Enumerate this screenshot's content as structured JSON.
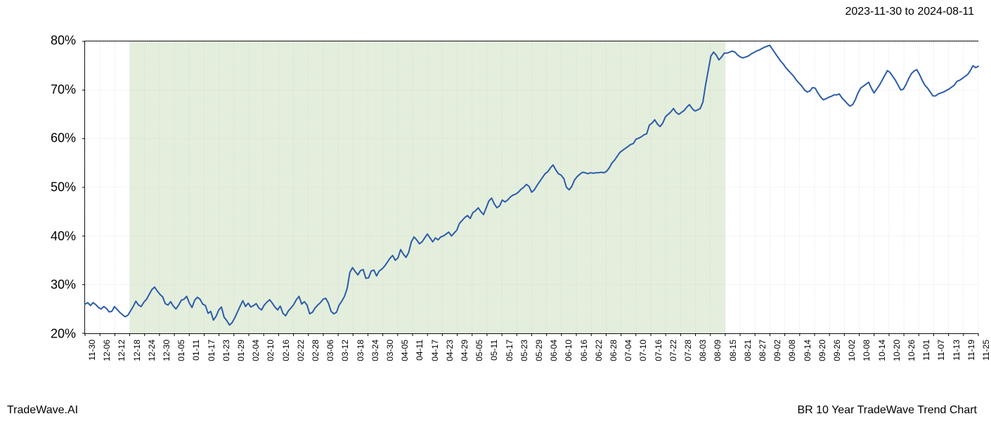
{
  "header": {
    "date_range": "2023-11-30 to 2024-08-11"
  },
  "footer": {
    "left": "TradeWave.AI",
    "right": "BR 10 Year TradeWave Trend Chart"
  },
  "chart": {
    "type": "line",
    "background_color": "#ffffff",
    "highlight_fill": "#e4eedc",
    "grid_color": "#cccccc",
    "border_color": "#000000",
    "line_color": "#2a5caa",
    "line_width": 2.0,
    "ylim": [
      20,
      80
    ],
    "y_ticks": [
      20,
      30,
      40,
      50,
      60,
      70,
      80
    ],
    "y_tick_labels": [
      "20%",
      "30%",
      "40%",
      "50%",
      "60%",
      "70%",
      "80%"
    ],
    "y_tick_fontsize": 18,
    "x_tick_labels": [
      "11-30",
      "12-06",
      "12-12",
      "12-18",
      "12-24",
      "12-30",
      "01-05",
      "01-11",
      "01-17",
      "01-23",
      "01-29",
      "02-04",
      "02-10",
      "02-16",
      "02-22",
      "02-28",
      "03-06",
      "03-12",
      "03-18",
      "03-24",
      "03-30",
      "04-05",
      "04-11",
      "04-17",
      "04-23",
      "04-29",
      "05-05",
      "05-11",
      "05-17",
      "05-23",
      "05-29",
      "06-04",
      "06-10",
      "06-16",
      "06-22",
      "06-28",
      "07-04",
      "07-10",
      "07-16",
      "07-22",
      "07-28",
      "08-03",
      "08-09",
      "08-15",
      "08-21",
      "08-27",
      "09-02",
      "09-08",
      "09-14",
      "09-20",
      "09-26",
      "10-02",
      "10-08",
      "10-14",
      "10-20",
      "10-26",
      "11-01",
      "11-07",
      "11-13",
      "11-19",
      "11-25"
    ],
    "x_tick_fontsize": 12,
    "x_tick_rotation": 90,
    "highlight_region": {
      "start_index": 3,
      "end_index": 43
    },
    "series": [
      26.0,
      26.3,
      25.7,
      26.3,
      25.9,
      25.3,
      25.0,
      25.5,
      25.1,
      24.4,
      24.5,
      25.5,
      24.9,
      24.3,
      23.8,
      23.4,
      23.7,
      24.6,
      25.5,
      26.6,
      25.8,
      25.5,
      26.4,
      27.0,
      28.0,
      29.0,
      29.5,
      28.7,
      28.0,
      27.5,
      26.1,
      25.8,
      26.5,
      25.6,
      25.0,
      25.8,
      26.8,
      27.0,
      27.6,
      26.2,
      25.3,
      26.8,
      27.4,
      27.0,
      26.0,
      25.7,
      24.1,
      24.5,
      22.7,
      23.5,
      24.8,
      25.4,
      23.3,
      22.6,
      21.7,
      22.2,
      23.2,
      24.4,
      25.6,
      26.7,
      25.5,
      26.2,
      25.4,
      25.7,
      26.1,
      25.2,
      24.8,
      25.8,
      26.4,
      26.9,
      26.2,
      25.4,
      24.8,
      25.6,
      24.1,
      23.6,
      24.6,
      25.2,
      25.9,
      26.9,
      27.6,
      26.0,
      26.5,
      25.8,
      24.0,
      24.3,
      25.2,
      25.8,
      26.3,
      27.0,
      27.2,
      26.2,
      24.5,
      24.0,
      24.3,
      25.8,
      26.6,
      27.6,
      29.2,
      32.5,
      33.5,
      32.7,
      32.0,
      32.9,
      33.1,
      31.3,
      31.4,
      32.8,
      33.0,
      31.8,
      32.8,
      33.2,
      33.8,
      34.6,
      35.4,
      36.0,
      35.0,
      35.5,
      37.2,
      36.3,
      35.6,
      36.6,
      38.8,
      39.8,
      39.2,
      38.4,
      38.8,
      39.6,
      40.4,
      39.6,
      38.8,
      39.6,
      39.2,
      39.8,
      40.0,
      40.4,
      40.8,
      40.0,
      40.6,
      41.2,
      42.6,
      43.2,
      43.8,
      44.2,
      43.6,
      44.8,
      45.2,
      45.8,
      45.0,
      44.4,
      45.8,
      47.2,
      47.8,
      46.6,
      45.8,
      46.2,
      47.4,
      47.0,
      47.4,
      48.0,
      48.4,
      48.6,
      49.0,
      49.6,
      50.0,
      50.6,
      50.2,
      49.0,
      49.5,
      50.4,
      51.2,
      52.0,
      52.8,
      53.2,
      54.0,
      54.6,
      53.6,
      52.8,
      52.5,
      51.8,
      50.0,
      49.5,
      50.2,
      51.5,
      52.2,
      52.7,
      53.1,
      53.0,
      52.8,
      53.0,
      52.9,
      53.0,
      53.0,
      53.1,
      53.0,
      53.3,
      54.0,
      55.0,
      55.6,
      56.4,
      57.2,
      57.6,
      58.0,
      58.4,
      58.8,
      59.0,
      59.9,
      60.1,
      60.4,
      60.8,
      61.0,
      62.8,
      63.2,
      63.9,
      63.0,
      62.5,
      63.2,
      64.5,
      65.0,
      65.5,
      66.2,
      65.4,
      65.0,
      65.4,
      65.8,
      66.5,
      67.0,
      66.2,
      65.7,
      65.9,
      66.2,
      67.5,
      71.0,
      74.0,
      77.0,
      77.8,
      77.2,
      76.2,
      76.8,
      77.6,
      77.6,
      77.8,
      78.0,
      77.8,
      77.2,
      76.8,
      76.6,
      76.8,
      77.0,
      77.4,
      77.7,
      78.0,
      78.2,
      78.5,
      78.8,
      79.0,
      79.2,
      78.4,
      77.6,
      76.8,
      76.0,
      75.4,
      74.6,
      74.0,
      73.4,
      72.8,
      72.0,
      71.4,
      70.8,
      70.0,
      69.6,
      69.8,
      70.5,
      70.4,
      69.4,
      68.6,
      68.0,
      68.2,
      68.5,
      68.7,
      69.0,
      69.0,
      69.2,
      68.4,
      67.8,
      67.2,
      66.7,
      67.0,
      68.0,
      69.4,
      70.4,
      70.8,
      71.2,
      71.6,
      70.4,
      69.4,
      70.2,
      71.0,
      72.0,
      73.0,
      74.0,
      73.6,
      72.8,
      72.0,
      71.0,
      70.0,
      70.2,
      71.2,
      72.4,
      73.4,
      73.9,
      74.2,
      73.2,
      72.0,
      71.0,
      70.4,
      69.6,
      68.8,
      68.8,
      69.2,
      69.4,
      69.6,
      69.9,
      70.2,
      70.6,
      71.0,
      71.8,
      72.0,
      72.4,
      72.8,
      73.2,
      74.0,
      75.0,
      74.6,
      74.9
    ]
  }
}
